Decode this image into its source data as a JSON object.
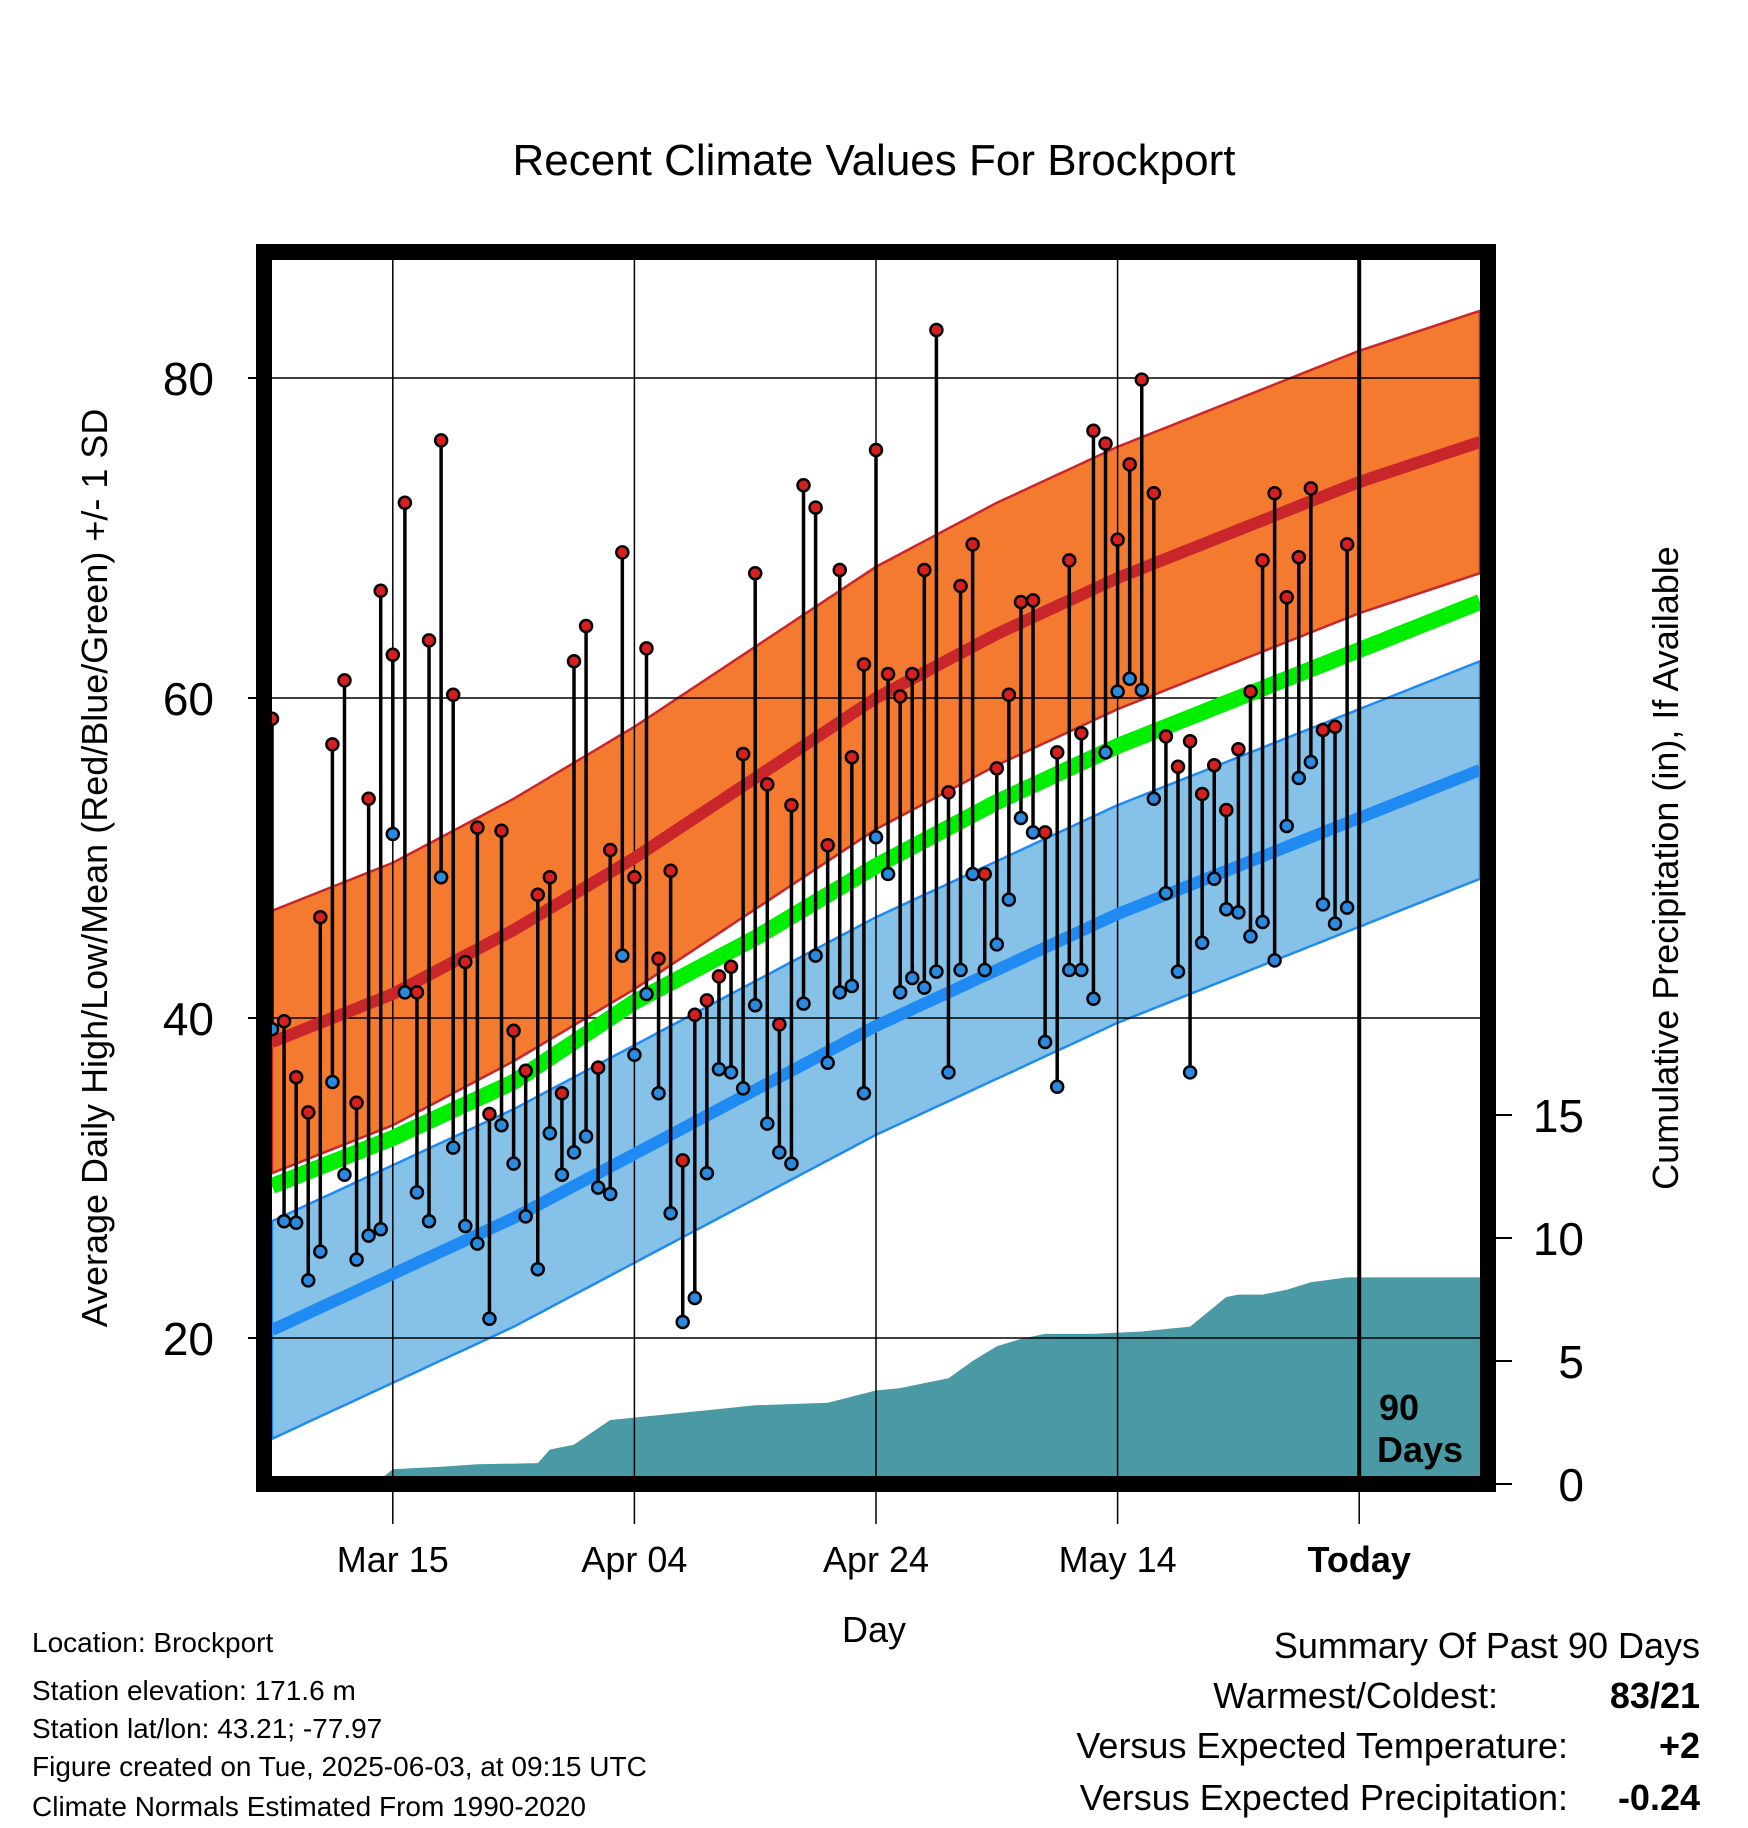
{
  "chart_data": {
    "type": "line",
    "title": "Recent Climate Values For Brockport",
    "xlabel": "Day",
    "ylabel": "Average Daily High/Low/Mean (Red/Blue/Green) +/- 1 SD",
    "y2label": "Cumulative Precipitation (in), If Available",
    "ylim": [
      11,
      87
    ],
    "y2lim": [
      0,
      20
    ],
    "xlim_days": [
      0,
      100
    ],
    "x_ticks": [
      {
        "day": 10,
        "label": "Mar 15"
      },
      {
        "day": 30,
        "label": "Apr 04"
      },
      {
        "day": 50,
        "label": "Apr 24"
      },
      {
        "day": 70,
        "label": "May 14"
      },
      {
        "day": 90,
        "label": "Today"
      }
    ],
    "y_ticks": [
      20,
      40,
      60,
      80
    ],
    "y_minor_ticks": [
      30,
      50,
      70
    ],
    "y2_ticks": [
      0,
      5,
      10,
      15
    ],
    "grid": true,
    "today_day": 90,
    "today_marker_label": [
      "90",
      "Days"
    ],
    "colors": {
      "high_band": "#f47a30",
      "high_line": "#c8262b",
      "low_band": "#86c2e8",
      "low_line": "#1f8bf2",
      "mean_line": "#00ee00",
      "precip_fill": "#4a9aa5",
      "high_marker": "#d62020",
      "low_marker": "#2a8ae0"
    },
    "normal_high": {
      "days": [
        0,
        10,
        20,
        30,
        40,
        50,
        60,
        70,
        80,
        90,
        100
      ],
      "values": [
        38.5,
        41.5,
        45.5,
        50,
        55,
        60,
        64,
        67.5,
        70.5,
        73.5,
        76
      ]
    },
    "normal_high_sd": 8.2,
    "normal_low": {
      "days": [
        0,
        10,
        20,
        30,
        40,
        50,
        60,
        70,
        80,
        90,
        100
      ],
      "values": [
        20.5,
        24,
        27.5,
        31.5,
        35.5,
        39.5,
        43,
        46.5,
        49.5,
        52.5,
        55.5
      ]
    },
    "normal_low_sd": 6.8,
    "normal_mean": {
      "days": [
        0,
        10,
        20,
        30,
        40,
        50,
        60,
        70,
        80,
        90,
        100
      ],
      "values": [
        29.5,
        32.5,
        36,
        41,
        45,
        49.5,
        53.5,
        57,
        60,
        63,
        66
      ]
    },
    "series": [
      {
        "name": "High",
        "values": [
          58.7,
          39.8,
          36.3,
          34.1,
          46.3,
          57.1,
          61.1,
          34.7,
          53.7,
          66.7,
          62.7,
          72.2,
          41.6,
          63.6,
          76.1,
          60.2,
          43.5,
          51.9,
          34.0,
          51.7,
          39.2,
          36.7,
          47.7,
          48.8,
          35.3,
          62.3,
          64.5,
          36.9,
          50.5,
          69.1,
          48.8,
          63.1,
          43.7,
          49.2,
          31.1,
          40.2,
          41.1,
          42.6,
          43.2,
          56.5,
          67.8,
          54.6,
          39.6,
          53.3,
          73.3,
          71.9,
          50.8,
          68.0,
          56.3,
          62.1,
          75.5,
          61.5,
          60.1,
          61.5,
          68.0,
          83.0,
          54.1,
          67.0,
          69.6,
          49.0,
          55.6,
          60.2,
          66.0,
          66.1,
          51.6,
          56.6,
          68.6,
          57.8,
          76.7,
          75.9,
          69.9,
          74.6,
          79.9,
          72.8,
          57.6,
          55.7,
          57.3,
          54.0,
          55.8,
          53.0,
          56.8,
          60.4,
          68.6,
          72.8,
          66.3,
          68.8,
          73.1,
          58.0,
          58.2,
          69.6
        ]
      },
      {
        "name": "Low",
        "values": [
          39.3,
          27.3,
          27.2,
          23.6,
          25.4,
          36.0,
          30.2,
          24.9,
          26.4,
          26.8,
          51.5,
          41.6,
          29.1,
          27.3,
          48.8,
          31.9,
          27.0,
          25.9,
          21.2,
          33.3,
          30.9,
          27.6,
          24.3,
          32.8,
          30.2,
          31.6,
          32.6,
          29.4,
          29.0,
          43.9,
          37.7,
          41.5,
          35.3,
          27.8,
          21.0,
          22.5,
          30.3,
          36.8,
          36.6,
          35.6,
          40.8,
          33.4,
          31.6,
          30.9,
          40.9,
          43.9,
          37.2,
          41.6,
          42.0,
          35.3,
          51.3,
          49.0,
          41.6,
          42.5,
          41.9,
          42.9,
          36.6,
          43.0,
          49.0,
          43.0,
          44.6,
          47.4,
          52.5,
          51.6,
          38.5,
          35.7,
          43.0,
          43.0,
          41.2,
          56.6,
          60.4,
          61.2,
          60.5,
          53.7,
          47.8,
          42.9,
          36.6,
          44.7,
          48.7,
          46.8,
          46.6,
          45.1,
          46.0,
          43.6,
          52.0,
          55.0,
          56.0,
          47.1,
          45.9,
          46.9
        ]
      }
    ],
    "precip_cumulative": {
      "days": [
        0,
        9,
        10,
        14,
        17,
        22,
        23,
        25,
        28,
        30,
        36,
        40,
        46,
        50,
        52,
        54,
        56,
        58,
        60,
        62,
        64,
        68,
        72,
        74,
        76,
        78,
        79,
        80,
        82,
        84,
        86,
        89,
        100
      ],
      "values": [
        0.1,
        0.2,
        0.6,
        0.7,
        0.8,
        0.85,
        1.4,
        1.6,
        2.6,
        2.7,
        3.0,
        3.2,
        3.3,
        3.8,
        3.9,
        4.1,
        4.3,
        5.0,
        5.6,
        5.9,
        6.1,
        6.1,
        6.2,
        6.3,
        6.4,
        7.2,
        7.6,
        7.7,
        7.7,
        7.9,
        8.2,
        8.4,
        8.4
      ]
    }
  },
  "footer": {
    "location": "Location: Brockport",
    "elevation": "Station elevation: 171.6 m",
    "latlon": "Station lat/lon: 43.21; -77.97",
    "created": "Figure created on Tue, 2025-06-03, at 09:15 UTC",
    "normals": "Climate Normals Estimated From 1990-2020"
  },
  "summary": {
    "title": "Summary Of Past 90 Days",
    "warmest_label": "Warmest/Coldest:",
    "warmest_value": "83/21",
    "temp_label": "Versus Expected Temperature:",
    "temp_value": "+2",
    "precip_label": "Versus Expected Precipitation:",
    "precip_value": "-0.24",
    "temp_color": "#d42020",
    "precip_color": "#a0522d"
  }
}
